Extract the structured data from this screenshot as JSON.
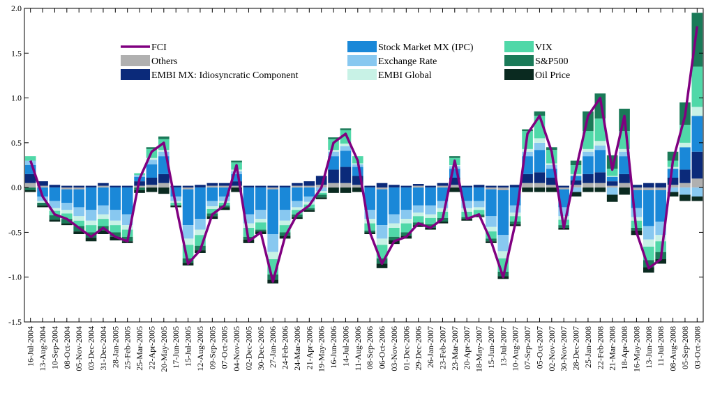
{
  "chart_data": {
    "type": "bar",
    "stacked": true,
    "categories": [
      "16-Jul-2004",
      "13-Aug-2004",
      "10-Sep-2004",
      "08-Oct-2004",
      "05-Nov-2004",
      "03-Dec-2004",
      "31-Dec-2004",
      "28-Jan-2005",
      "25-Feb-2005",
      "25-Mar-2005",
      "22-Apr-2005",
      "20-May-2005",
      "17-Jun-2005",
      "15-Jul-2005",
      "12-Aug-2005",
      "09-Sep-2005",
      "07-Oct-2005",
      "04-Nov-2005",
      "02-Dec-2005",
      "30-Dec-2005",
      "27-Jan-2006",
      "24-Feb-2006",
      "24-Mar-2006",
      "21-Apr-2006",
      "19-May-2006",
      "16-Jun-2006",
      "14-Jul-2006",
      "11-Aug-2006",
      "08-Sep-2006",
      "06-Oct-2006",
      "03-Nov-2006",
      "01-Dec-2006",
      "29-Dec-2006",
      "26-Jan-2007",
      "23-Feb-2007",
      "23-Mar-2007",
      "20-Apr-2007",
      "18-May-2007",
      "15-Jun-2007",
      "13-Jul-2007",
      "10-Aug-2007",
      "07-Sep-2007",
      "05-Oct-2007",
      "02-Nov-2007",
      "30-Nov-2007",
      "28-Dec-2007",
      "25-Jan-2008",
      "22-Feb-2008",
      "21-Mar-2008",
      "18-Apr-2008",
      "16-May-2008",
      "13-Jun-2008",
      "11-Jul-2008",
      "08-Aug-2008",
      "05-Sep-2008",
      "03-Oct-2008"
    ],
    "series": [
      {
        "name": "FCI",
        "type": "line",
        "color": "#800080",
        "values": [
          0.3,
          -0.1,
          -0.3,
          -0.35,
          -0.45,
          -0.55,
          -0.45,
          -0.55,
          -0.6,
          0.1,
          0.4,
          0.5,
          -0.2,
          -0.85,
          -0.7,
          -0.3,
          -0.2,
          0.25,
          -0.6,
          -0.5,
          -1.05,
          -0.55,
          -0.3,
          -0.2,
          0,
          0.5,
          0.6,
          0.3,
          -0.5,
          -0.85,
          -0.6,
          -0.55,
          -0.4,
          -0.45,
          -0.35,
          0.3,
          -0.35,
          -0.3,
          -0.6,
          -1.0,
          -0.4,
          0.6,
          0.8,
          0.4,
          -0.45,
          0.2,
          0.8,
          1.0,
          0.2,
          0.8,
          -0.5,
          -0.9,
          -0.8,
          0.3,
          0.8,
          1.8
        ]
      },
      {
        "name": "Others",
        "color": "#b0b0b0",
        "values": [
          0.05,
          0.02,
          0,
          -0.02,
          -0.02,
          0,
          0.02,
          0,
          0,
          0.02,
          0.03,
          0.05,
          0,
          -0.02,
          0,
          0.02,
          0.02,
          0.02,
          0,
          0,
          -0.02,
          0,
          0.02,
          0.02,
          0.03,
          0.05,
          0.05,
          0.03,
          0,
          -0.02,
          0,
          0,
          0.02,
          0,
          0.02,
          0.03,
          0,
          0,
          -0.02,
          -0.03,
          0,
          0.05,
          0.05,
          0.03,
          -0.02,
          0.03,
          0.05,
          0.05,
          0.02,
          0.05,
          -0.03,
          -0.03,
          -0.03,
          0.03,
          0.05,
          0.1
        ]
      },
      {
        "name": "EMBI MX: Idiosyncratic Component",
        "color": "#0b2a7a",
        "values": [
          0.1,
          0.05,
          0.03,
          0.02,
          0.02,
          0.02,
          0.03,
          0.02,
          0.02,
          0.05,
          0.08,
          0.1,
          0.02,
          0.02,
          0.03,
          0.03,
          0.03,
          0.05,
          0.02,
          0.02,
          0.02,
          0.02,
          0.03,
          0.05,
          0.1,
          0.15,
          0.18,
          0.1,
          0.02,
          0.05,
          0.03,
          0.02,
          0.02,
          0.02,
          0.03,
          0.08,
          0.02,
          0.03,
          0.02,
          0.02,
          0.03,
          0.1,
          0.12,
          0.08,
          0.02,
          0.05,
          0.1,
          0.12,
          0.05,
          0.1,
          0.03,
          0.05,
          0.05,
          0.08,
          0.15,
          0.3
        ]
      },
      {
        "name": "Stock Market MX (IPC)",
        "color": "#1a88d8",
        "values": [
          0.1,
          -0.1,
          -0.15,
          -0.15,
          -0.2,
          -0.25,
          -0.2,
          -0.25,
          -0.3,
          0.05,
          0.15,
          0.2,
          -0.1,
          -0.4,
          -0.35,
          -0.15,
          -0.1,
          0.08,
          -0.3,
          -0.25,
          -0.5,
          -0.25,
          -0.15,
          -0.1,
          0,
          0.15,
          0.18,
          0.1,
          -0.25,
          -0.4,
          -0.3,
          -0.25,
          -0.2,
          -0.2,
          -0.15,
          0.1,
          -0.15,
          -0.15,
          -0.3,
          -0.5,
          -0.2,
          0.2,
          0.25,
          0.1,
          -0.2,
          0.05,
          0.2,
          0.25,
          0.05,
          0.2,
          -0.2,
          -0.4,
          -0.35,
          0.1,
          0.25,
          0.4
        ]
      },
      {
        "name": "Exchange Rate",
        "color": "#88c8f0",
        "values": [
          0.05,
          -0.05,
          -0.08,
          -0.08,
          -0.1,
          -0.12,
          -0.1,
          -0.12,
          -0.12,
          0.02,
          0.05,
          0.05,
          -0.05,
          -0.15,
          -0.12,
          -0.06,
          -0.05,
          0.03,
          -0.1,
          -0.1,
          -0.2,
          -0.12,
          -0.07,
          -0.06,
          -0.04,
          0.05,
          0.05,
          0.03,
          -0.1,
          -0.15,
          -0.1,
          -0.1,
          -0.08,
          -0.1,
          -0.08,
          0.03,
          -0.08,
          -0.07,
          -0.12,
          -0.18,
          -0.08,
          0.05,
          0.08,
          0.04,
          -0.1,
          -0.05,
          0.05,
          0.05,
          -0.08,
          0.05,
          -0.1,
          -0.15,
          -0.15,
          -0.05,
          -0.08,
          -0.1
        ]
      },
      {
        "name": "EMBI Global",
        "color": "#c8f2e6",
        "values": [
          0,
          -0.02,
          -0.03,
          -0.04,
          -0.05,
          -0.05,
          -0.05,
          -0.05,
          -0.05,
          0,
          0.02,
          0.02,
          -0.02,
          -0.07,
          -0.06,
          -0.03,
          -0.02,
          0.02,
          -0.05,
          -0.04,
          -0.08,
          -0.05,
          -0.03,
          -0.03,
          -0.02,
          0.02,
          0.03,
          0.01,
          -0.05,
          -0.07,
          -0.05,
          -0.05,
          -0.04,
          -0.04,
          -0.04,
          0.01,
          -0.04,
          -0.03,
          -0.05,
          -0.08,
          -0.04,
          0.03,
          0.05,
          0.02,
          -0.04,
          0.02,
          0.03,
          0.05,
          0.01,
          0.03,
          -0.04,
          -0.08,
          -0.07,
          0.02,
          0.05,
          0.1
        ]
      },
      {
        "name": "VIX",
        "color": "#50d8a8",
        "values": [
          0.05,
          0,
          -0.05,
          -0.06,
          -0.06,
          -0.08,
          -0.08,
          -0.08,
          -0.08,
          0.02,
          0.1,
          0.12,
          -0.03,
          -0.15,
          -0.12,
          -0.05,
          -0.03,
          0.08,
          -0.1,
          -0.08,
          -0.17,
          -0.08,
          -0.05,
          -0.04,
          -0.02,
          0.12,
          0.15,
          0.08,
          -0.08,
          -0.15,
          -0.1,
          -0.1,
          -0.07,
          -0.07,
          -0.07,
          0.08,
          -0.06,
          -0.05,
          -0.08,
          -0.15,
          -0.06,
          0.2,
          0.25,
          0.15,
          -0.06,
          0.1,
          0.2,
          0.25,
          0.08,
          0.2,
          -0.08,
          -0.15,
          -0.12,
          0.07,
          0.2,
          0.45
        ]
      },
      {
        "name": "S&P500",
        "color": "#1a7a58",
        "values": [
          -0.03,
          -0.03,
          -0.05,
          -0.05,
          -0.06,
          -0.06,
          -0.05,
          -0.05,
          -0.05,
          -0.03,
          0.02,
          0.03,
          0,
          -0.05,
          -0.05,
          -0.03,
          -0.02,
          0.02,
          -0.03,
          -0.02,
          -0.06,
          -0.04,
          -0.03,
          -0.02,
          -0.03,
          0.02,
          0.02,
          0,
          -0.02,
          -0.06,
          -0.04,
          -0.04,
          -0.03,
          -0.04,
          -0.04,
          0.02,
          -0.02,
          -0.02,
          -0.03,
          -0.05,
          -0.03,
          0.02,
          0.05,
          0.03,
          -0.03,
          0.05,
          0.22,
          0.28,
          0.15,
          0.25,
          -0.03,
          -0.08,
          -0.08,
          0.1,
          0.25,
          0.6
        ]
      },
      {
        "name": "Oil Price",
        "color": "#0a2a20",
        "values": [
          -0.02,
          -0.02,
          -0.02,
          -0.02,
          -0.03,
          -0.04,
          -0.04,
          -0.04,
          -0.02,
          -0.03,
          -0.05,
          -0.07,
          -0.02,
          -0.03,
          -0.03,
          -0.03,
          -0.03,
          -0.05,
          -0.04,
          -0.03,
          -0.04,
          -0.03,
          -0.02,
          -0.02,
          -0.02,
          -0.06,
          -0.06,
          -0.05,
          -0.02,
          -0.05,
          -0.04,
          -0.03,
          -0.02,
          -0.02,
          -0.02,
          -0.05,
          -0.02,
          -0.01,
          -0.02,
          -0.03,
          -0.02,
          -0.05,
          -0.05,
          -0.05,
          -0.02,
          -0.05,
          -0.05,
          -0.05,
          -0.08,
          -0.08,
          -0.05,
          -0.06,
          -0.05,
          -0.05,
          -0.07,
          -0.05
        ]
      }
    ],
    "ylim": [
      -1.5,
      2.0
    ],
    "yticks": [
      {
        "value": -1.5,
        "label": "-1.5"
      },
      {
        "value": -1.0,
        "label": "-1.0"
      },
      -0.5,
      {
        "value": 0.0,
        "label": "0.0"
      },
      0.5,
      {
        "value": 1.0,
        "label": "1.0"
      },
      1.5,
      {
        "value": 2.0,
        "label": "2.0"
      }
    ],
    "grid": false,
    "legend": "upper center"
  }
}
